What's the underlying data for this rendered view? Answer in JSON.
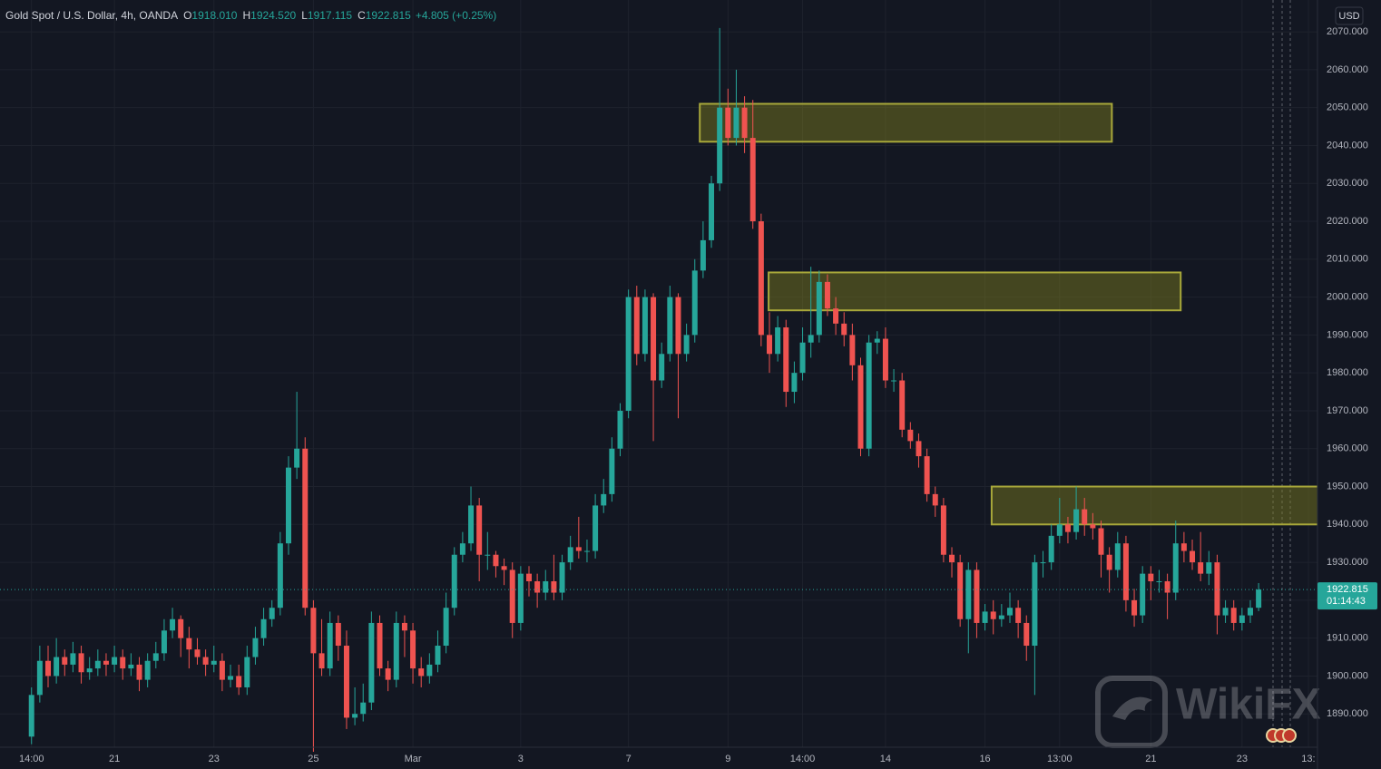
{
  "chart_data": {
    "type": "candlestick",
    "symbol": "Gold Spot / U.S. Dollar, 4h, OANDA",
    "ohlc_legend": [
      {
        "key": "O",
        "value": "1918.010"
      },
      {
        "key": "H",
        "value": "1924.520"
      },
      {
        "key": "L",
        "value": "1917.115"
      },
      {
        "key": "C",
        "value": "1922.815"
      }
    ],
    "change": "+4.805 (+0.25%)",
    "currency": "USD",
    "last_price": 1922.815,
    "countdown": "01:14:43",
    "watermark": "WikiFX",
    "up_color": "#26a69a",
    "down_color": "#ef5350",
    "grid": true,
    "xlim": [
      -3.8,
      155.1
    ],
    "ylim": [
      1881.2,
      2078.4
    ],
    "xticks": [
      {
        "value": 0,
        "label": "14:00"
      },
      {
        "value": 10,
        "label": "21"
      },
      {
        "value": 22,
        "label": "23"
      },
      {
        "value": 34,
        "label": "25"
      },
      {
        "value": 46,
        "label": "Mar"
      },
      {
        "value": 59,
        "label": "3"
      },
      {
        "value": 72,
        "label": "7"
      },
      {
        "value": 84,
        "label": "9"
      },
      {
        "value": 93,
        "label": "14:00"
      },
      {
        "value": 103,
        "label": "14"
      },
      {
        "value": 115,
        "label": "16"
      },
      {
        "value": 124,
        "label": "13:00"
      },
      {
        "value": 135,
        "label": "21"
      },
      {
        "value": 146,
        "label": "23"
      },
      {
        "value": 154,
        "label": "13:"
      }
    ],
    "yticks": [
      {
        "value": 1890,
        "label": "1890.000"
      },
      {
        "value": 1900,
        "label": "1900.000"
      },
      {
        "value": 1910,
        "label": "1910.000"
      },
      {
        "value": 1920,
        "label": "1920.000"
      },
      {
        "value": 1930,
        "label": "1930.000"
      },
      {
        "value": 1940,
        "label": "1940.000"
      },
      {
        "value": 1950,
        "label": "1950.000"
      },
      {
        "value": 1960,
        "label": "1960.000"
      },
      {
        "value": 1970,
        "label": "1970.000"
      },
      {
        "value": 1980,
        "label": "1980.000"
      },
      {
        "value": 1990,
        "label": "1990.000"
      },
      {
        "value": 2000,
        "label": "2000.000"
      },
      {
        "value": 2010,
        "label": "2010.000"
      },
      {
        "value": 2020,
        "label": "2020.000"
      },
      {
        "value": 2030,
        "label": "2030.000"
      },
      {
        "value": 2040,
        "label": "2040.000"
      },
      {
        "value": 2050,
        "label": "2050.000"
      },
      {
        "value": 2060,
        "label": "2060.000"
      },
      {
        "value": 2070,
        "label": "2070.000"
      }
    ],
    "zones": [
      {
        "x": [
          80.6,
          130.3
        ],
        "y": [
          2041,
          2051
        ]
      },
      {
        "x": [
          88.9,
          138.6
        ],
        "y": [
          1996.5,
          2006.5
        ]
      },
      {
        "x": [
          115.8,
          158
        ],
        "y": [
          1940,
          1950
        ]
      }
    ],
    "candles": [
      [
        1884,
        1897,
        1882,
        1895
      ],
      [
        1895,
        1908,
        1893,
        1904
      ],
      [
        1904,
        1908,
        1897,
        1900
      ],
      [
        1900,
        1910,
        1898,
        1905
      ],
      [
        1905,
        1907,
        1900,
        1903
      ],
      [
        1903,
        1909,
        1901,
        1906
      ],
      [
        1906,
        1908,
        1898,
        1901
      ],
      [
        1901,
        1905,
        1899,
        1902
      ],
      [
        1902,
        1907,
        1900,
        1904
      ],
      [
        1904,
        1906,
        1900,
        1903
      ],
      [
        1903,
        1908,
        1901,
        1905
      ],
      [
        1905,
        1907,
        1899,
        1902
      ],
      [
        1902,
        1906,
        1900,
        1903
      ],
      [
        1903,
        1905,
        1896,
        1899
      ],
      [
        1899,
        1906,
        1897,
        1904
      ],
      [
        1904,
        1909,
        1902,
        1906
      ],
      [
        1906,
        1915,
        1904,
        1912
      ],
      [
        1912,
        1918,
        1910,
        1915
      ],
      [
        1915,
        1916,
        1905,
        1910
      ],
      [
        1910,
        1913,
        1902,
        1907
      ],
      [
        1907,
        1910,
        1903,
        1905
      ],
      [
        1905,
        1907,
        1900,
        1903
      ],
      [
        1903,
        1908,
        1901,
        1904
      ],
      [
        1904,
        1906,
        1896,
        1899
      ],
      [
        1899,
        1903,
        1897,
        1900
      ],
      [
        1900,
        1903,
        1895,
        1897
      ],
      [
        1897,
        1908,
        1895,
        1905
      ],
      [
        1905,
        1913,
        1903,
        1910
      ],
      [
        1910,
        1918,
        1908,
        1915
      ],
      [
        1915,
        1920,
        1913,
        1918
      ],
      [
        1918,
        1938,
        1916,
        1935
      ],
      [
        1935,
        1958,
        1932,
        1955
      ],
      [
        1955,
        1975,
        1952,
        1960
      ],
      [
        1960,
        1963,
        1916,
        1918
      ],
      [
        1918,
        1920,
        1880,
        1906
      ],
      [
        1906,
        1915,
        1900,
        1902
      ],
      [
        1902,
        1917,
        1900,
        1914
      ],
      [
        1914,
        1916,
        1904,
        1908
      ],
      [
        1908,
        1912,
        1886,
        1889
      ],
      [
        1889,
        1897,
        1887,
        1890
      ],
      [
        1890,
        1898,
        1888,
        1893
      ],
      [
        1893,
        1917,
        1891,
        1914
      ],
      [
        1914,
        1916,
        1900,
        1902
      ],
      [
        1902,
        1904,
        1896,
        1899
      ],
      [
        1899,
        1917,
        1897,
        1914
      ],
      [
        1914,
        1916,
        1905,
        1912
      ],
      [
        1912,
        1914,
        1898,
        1902
      ],
      [
        1902,
        1905,
        1897,
        1900
      ],
      [
        1900,
        1906,
        1898,
        1903
      ],
      [
        1903,
        1912,
        1901,
        1908
      ],
      [
        1908,
        1922,
        1906,
        1918
      ],
      [
        1918,
        1934,
        1916,
        1932
      ],
      [
        1932,
        1938,
        1930,
        1935
      ],
      [
        1935,
        1950,
        1933,
        1945
      ],
      [
        1945,
        1947,
        1925,
        1932
      ],
      [
        1932,
        1938,
        1928,
        1932
      ],
      [
        1932,
        1933,
        1926,
        1929
      ],
      [
        1929,
        1931,
        1924,
        1928
      ],
      [
        1928,
        1930,
        1910,
        1914
      ],
      [
        1914,
        1929,
        1912,
        1927
      ],
      [
        1927,
        1929,
        1921,
        1925
      ],
      [
        1925,
        1927,
        1918,
        1922
      ],
      [
        1922,
        1928,
        1920,
        1925
      ],
      [
        1925,
        1932,
        1920,
        1922
      ],
      [
        1922,
        1932,
        1920,
        1930
      ],
      [
        1930,
        1937,
        1928,
        1934
      ],
      [
        1934,
        1942,
        1931,
        1933
      ],
      [
        1933,
        1936,
        1930,
        1933
      ],
      [
        1933,
        1948,
        1931,
        1945
      ],
      [
        1945,
        1952,
        1943,
        1948
      ],
      [
        1948,
        1963,
        1946,
        1960
      ],
      [
        1960,
        1972,
        1958,
        1970
      ],
      [
        1970,
        2002,
        1968,
        2000
      ],
      [
        2000,
        2003,
        1982,
        1985
      ],
      [
        1985,
        2002,
        1983,
        2000
      ],
      [
        2000,
        2001,
        1962,
        1978
      ],
      [
        1978,
        1988,
        1976,
        1985
      ],
      [
        1985,
        2003,
        1983,
        2000
      ],
      [
        2000,
        2001,
        1968,
        1985
      ],
      [
        1985,
        1993,
        1983,
        1990
      ],
      [
        1990,
        2010,
        1988,
        2007
      ],
      [
        2007,
        2020,
        2005,
        2015
      ],
      [
        2015,
        2032,
        2013,
        2030
      ],
      [
        2030,
        2071,
        2028,
        2050
      ],
      [
        2050,
        2055,
        2040,
        2042
      ],
      [
        2042,
        2060,
        2040,
        2050
      ],
      [
        2050,
        2053,
        2038,
        2042
      ],
      [
        2042,
        2052,
        2018,
        2020
      ],
      [
        2020,
        2022,
        1987,
        1990
      ],
      [
        1990,
        1996,
        1980,
        1985
      ],
      [
        1985,
        1995,
        1983,
        1992
      ],
      [
        1992,
        1994,
        1971,
        1975
      ],
      [
        1975,
        1983,
        1972,
        1980
      ],
      [
        1980,
        1992,
        1978,
        1988
      ],
      [
        1988,
        2008,
        1984,
        1990
      ],
      [
        1990,
        2007,
        1988,
        2004
      ],
      [
        2004,
        2006,
        1995,
        1997
      ],
      [
        1997,
        2000,
        1990,
        1993
      ],
      [
        1993,
        1996,
        1987,
        1990
      ],
      [
        1990,
        1993,
        1978,
        1982
      ],
      [
        1982,
        1984,
        1958,
        1960
      ],
      [
        1960,
        1990,
        1958,
        1988
      ],
      [
        1988,
        1991,
        1985,
        1989
      ],
      [
        1989,
        1992,
        1976,
        1978
      ],
      [
        1978,
        1981,
        1975,
        1978
      ],
      [
        1978,
        1980,
        1963,
        1965
      ],
      [
        1965,
        1967,
        1960,
        1962
      ],
      [
        1962,
        1964,
        1955,
        1958
      ],
      [
        1958,
        1960,
        1946,
        1948
      ],
      [
        1948,
        1950,
        1942,
        1945
      ],
      [
        1945,
        1947,
        1930,
        1932
      ],
      [
        1932,
        1934,
        1926,
        1930
      ],
      [
        1930,
        1932,
        1913,
        1915
      ],
      [
        1915,
        1930,
        1906,
        1928
      ],
      [
        1928,
        1930,
        1910,
        1914
      ],
      [
        1914,
        1919,
        1912,
        1917
      ],
      [
        1917,
        1920,
        1911,
        1915
      ],
      [
        1915,
        1919,
        1913,
        1916
      ],
      [
        1916,
        1922,
        1914,
        1918
      ],
      [
        1918,
        1920,
        1910,
        1914
      ],
      [
        1914,
        1916,
        1904,
        1908
      ],
      [
        1908,
        1932,
        1895,
        1930
      ],
      [
        1930,
        1933,
        1926,
        1930
      ],
      [
        1930,
        1940,
        1928,
        1937
      ],
      [
        1937,
        1947,
        1935,
        1940
      ],
      [
        1940,
        1942,
        1935,
        1938
      ],
      [
        1938,
        1950,
        1936,
        1944
      ],
      [
        1944,
        1947,
        1937,
        1940
      ],
      [
        1940,
        1943,
        1936,
        1939
      ],
      [
        1939,
        1941,
        1926,
        1932
      ],
      [
        1932,
        1934,
        1922,
        1928
      ],
      [
        1928,
        1938,
        1926,
        1935
      ],
      [
        1935,
        1937,
        1917,
        1920
      ],
      [
        1920,
        1923,
        1913,
        1916
      ],
      [
        1916,
        1929,
        1914,
        1927
      ],
      [
        1927,
        1929,
        1920,
        1925
      ],
      [
        1925,
        1928,
        1922,
        1925
      ],
      [
        1925,
        1927,
        1915,
        1922
      ],
      [
        1922,
        1941,
        1920,
        1935
      ],
      [
        1935,
        1938,
        1930,
        1933
      ],
      [
        1933,
        1936,
        1928,
        1930
      ],
      [
        1930,
        1938,
        1925,
        1927
      ],
      [
        1927,
        1933,
        1924,
        1930
      ],
      [
        1930,
        1932,
        1911,
        1916
      ],
      [
        1916,
        1920,
        1914,
        1918
      ],
      [
        1918,
        1920,
        1912,
        1914
      ],
      [
        1914,
        1918,
        1912,
        1916
      ],
      [
        1916,
        1920,
        1914,
        1918
      ],
      [
        1918.01,
        1924.52,
        1917.115,
        1922.815
      ]
    ]
  }
}
